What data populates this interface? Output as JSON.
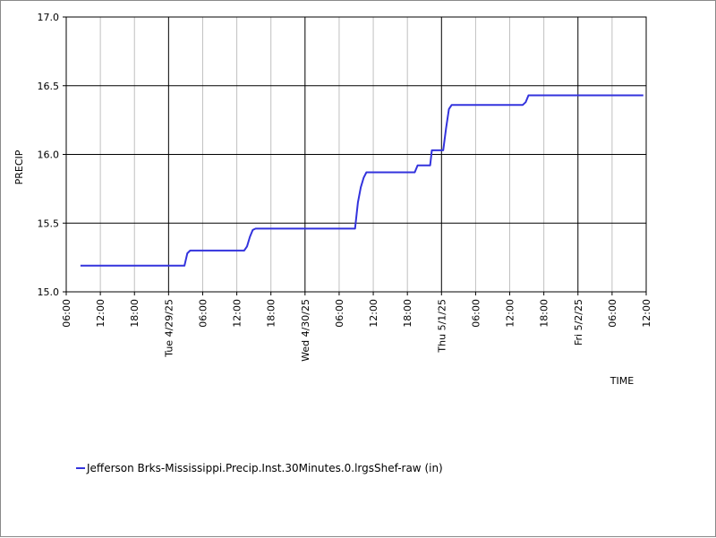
{
  "chart_data": {
    "type": "line",
    "xlabel": "TIME",
    "ylabel": "PRECIP",
    "ylim": [
      15.0,
      17.0
    ],
    "y_ticks": [
      "15.0",
      "15.5",
      "16.0",
      "16.5",
      "17.0"
    ],
    "x_tick_labels": [
      "06:00",
      "12:00",
      "18:00",
      "Tue 4/29/25",
      "06:00",
      "12:00",
      "18:00",
      "Wed 4/30/25",
      "06:00",
      "12:00",
      "18:00",
      "Thu 5/1/25",
      "06:00",
      "12:00",
      "18:00",
      "Fri 5/2/25",
      "06:00",
      "12:00"
    ],
    "x_tick_hours": [
      6,
      12,
      18,
      24,
      30,
      36,
      42,
      48,
      54,
      60,
      66,
      72,
      78,
      84,
      90,
      96,
      102,
      108
    ],
    "x_major_hours": [
      24,
      48,
      72,
      96
    ],
    "x_hours_start": "Mon 4/28/25 00:00",
    "xlim_hours": [
      6,
      108
    ],
    "grid": true,
    "legend_position": "bottom-left",
    "series": [
      {
        "name": "Jefferson Brks-Mississippi.Precip.Inst.30Minutes.0.lrgsShef-raw (in)",
        "color": "#3333dd",
        "points": [
          [
            8.5,
            15.19
          ],
          [
            26.8,
            15.19
          ],
          [
            27.3,
            15.28
          ],
          [
            27.8,
            15.3
          ],
          [
            37.3,
            15.3
          ],
          [
            37.8,
            15.33
          ],
          [
            38.3,
            15.4
          ],
          [
            38.8,
            15.45
          ],
          [
            39.3,
            15.46
          ],
          [
            56.8,
            15.46
          ],
          [
            57.3,
            15.65
          ],
          [
            57.8,
            15.76
          ],
          [
            58.3,
            15.83
          ],
          [
            58.8,
            15.87
          ],
          [
            67.3,
            15.87
          ],
          [
            67.8,
            15.92
          ],
          [
            70.0,
            15.92
          ],
          [
            70.3,
            16.03
          ],
          [
            72.3,
            16.03
          ],
          [
            72.8,
            16.19
          ],
          [
            73.3,
            16.33
          ],
          [
            73.8,
            16.36
          ],
          [
            86.3,
            16.36
          ],
          [
            86.8,
            16.38
          ],
          [
            87.3,
            16.43
          ],
          [
            107.5,
            16.43
          ]
        ]
      }
    ]
  }
}
